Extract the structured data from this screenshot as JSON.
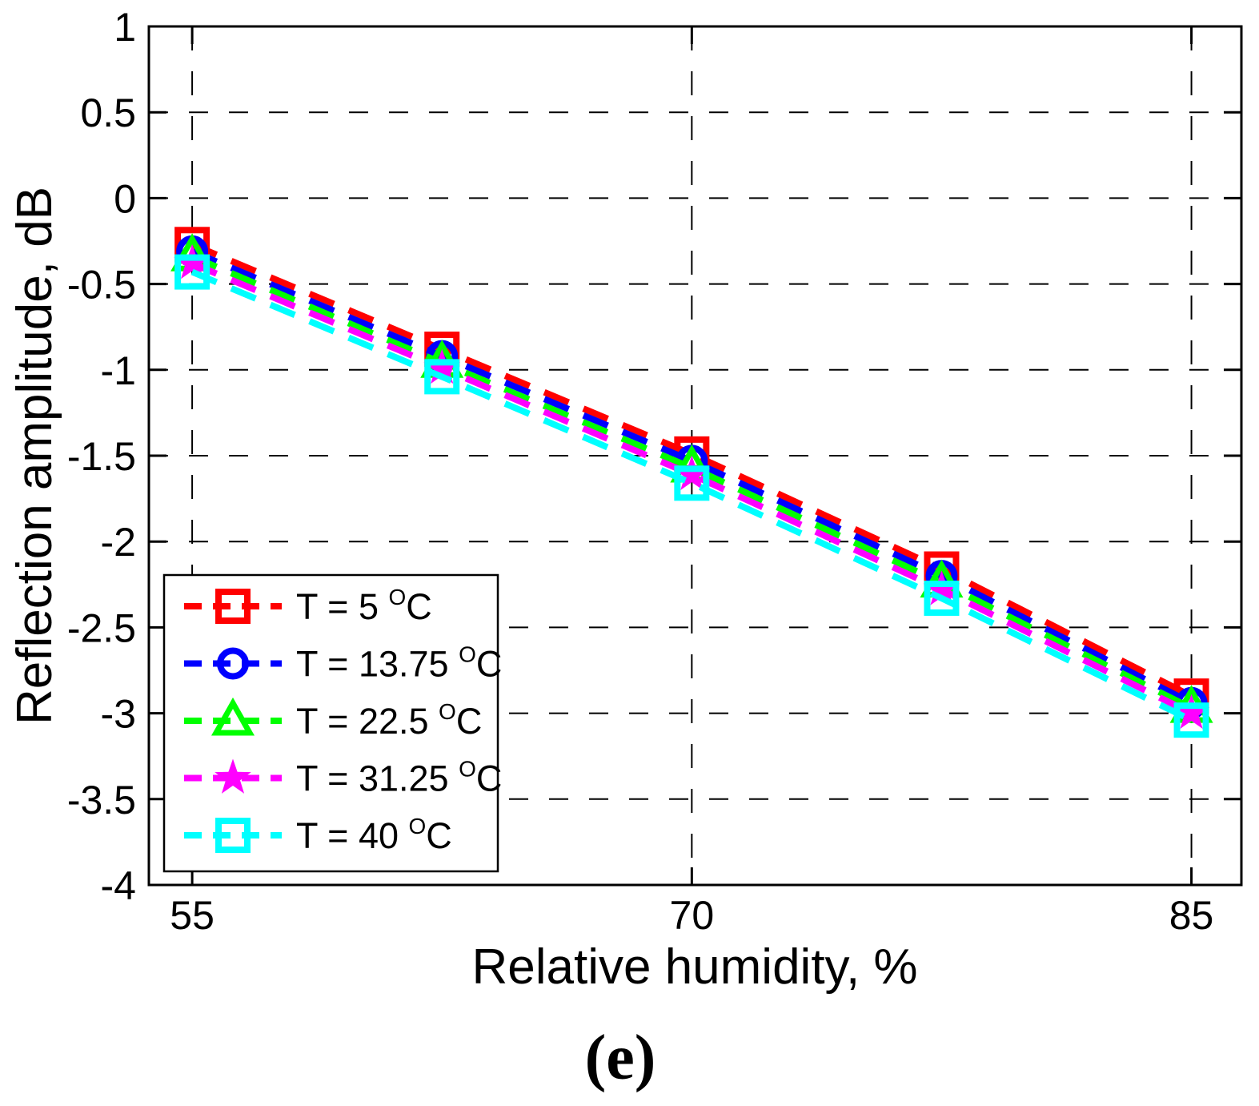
{
  "figure": {
    "caption": "(e)",
    "background_color": "#ffffff",
    "axis_color": "#000000",
    "grid_color": "#000000"
  },
  "chart_data": {
    "type": "line",
    "title": "",
    "xlabel": "Relative humidity, %",
    "ylabel": "Reflection amplitude, dB",
    "x": [
      55,
      62.5,
      70,
      77.5,
      85
    ],
    "xticks": [
      55,
      70,
      85
    ],
    "yticks": [
      1,
      0.5,
      0,
      -0.5,
      -1,
      -1.5,
      -2,
      -2.5,
      -3,
      -3.5,
      -4
    ],
    "xlim": [
      53.7,
      86.5
    ],
    "ylim": [
      -4,
      1
    ],
    "grid": true,
    "line_style": "dashed",
    "legend_position": "bottom-left-inside",
    "series": [
      {
        "label": "T = 5 °C",
        "color": "#ff0000",
        "marker": "square",
        "values": [
          -0.27,
          -0.88,
          -1.49,
          -2.16,
          -2.9
        ]
      },
      {
        "label": "T = 13.75 °C",
        "color": "#0000ff",
        "marker": "circle",
        "values": [
          -0.31,
          -0.92,
          -1.53,
          -2.2,
          -2.94
        ]
      },
      {
        "label": "T = 22.5 °C",
        "color": "#00ff00",
        "marker": "triangle",
        "values": [
          -0.34,
          -0.96,
          -1.57,
          -2.24,
          -2.97
        ]
      },
      {
        "label": "T = 31.25 °C",
        "color": "#ff00ff",
        "marker": "star",
        "values": [
          -0.38,
          -0.99,
          -1.61,
          -2.28,
          -3.0
        ]
      },
      {
        "label": "T = 40 °C",
        "color": "#00ffff",
        "marker": "square",
        "values": [
          -0.43,
          -1.04,
          -1.66,
          -2.33,
          -3.04
        ]
      }
    ]
  }
}
